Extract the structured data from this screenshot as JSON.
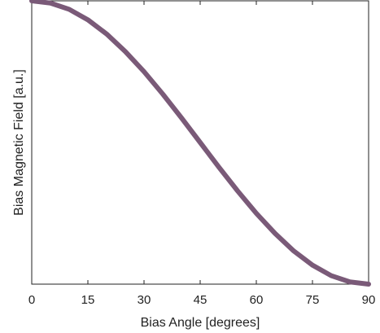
{
  "chart_data": {
    "type": "line",
    "title": "",
    "xlabel": "Bias Angle [degrees]",
    "ylabel": "Bias Magnetic Field [a.u.]",
    "xlim": [
      0,
      90
    ],
    "ylim": [
      0,
      1
    ],
    "x_ticks": [
      0,
      15,
      30,
      45,
      60,
      75,
      90
    ],
    "x_tick_labels": [
      "0",
      "15",
      "30",
      "45",
      "60",
      "75",
      "90"
    ],
    "y_ticks_shown": false,
    "grid": false,
    "legend": "none",
    "line_color": "#7a5a78",
    "series": [
      {
        "x": [
          0,
          5,
          10,
          15,
          20,
          25,
          30,
          35,
          40,
          45,
          50,
          55,
          60,
          65,
          70,
          75,
          80,
          85,
          90
        ],
        "y": [
          1.0,
          0.992,
          0.97,
          0.933,
          0.883,
          0.821,
          0.75,
          0.671,
          0.587,
          0.5,
          0.413,
          0.329,
          0.25,
          0.179,
          0.117,
          0.067,
          0.03,
          0.008,
          0.0
        ]
      }
    ]
  }
}
